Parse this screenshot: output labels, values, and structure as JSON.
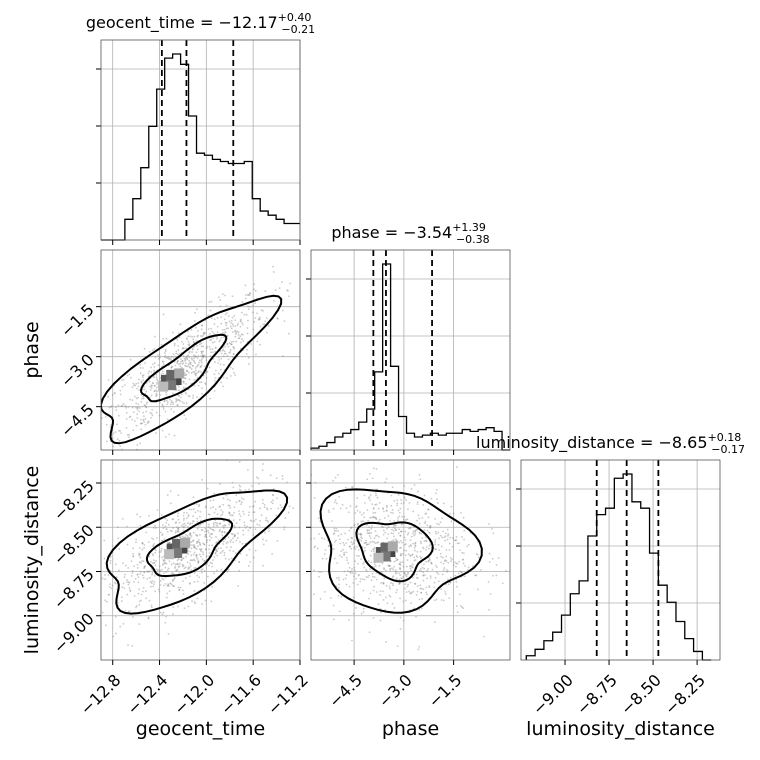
{
  "chart_data": {
    "type": "corner",
    "parameters": [
      "geocent_time",
      "phase",
      "luminosity_distance"
    ],
    "axis_ranges": {
      "geocent_time": [
        -12.9,
        -11.2
      ],
      "phase": [
        -5.8,
        0.2
      ],
      "luminosity_distance": [
        -9.25,
        -8.12
      ]
    },
    "ticks": {
      "geocent_time": [
        -12.8,
        -12.4,
        -12.0,
        -11.6,
        -11.2
      ],
      "phase": [
        -4.5,
        -3.0,
        -1.5
      ],
      "luminosity_distance": [
        -9.0,
        -8.75,
        -8.5,
        -8.25
      ]
    },
    "tick_labels": {
      "geocent_time": [
        "−12.8",
        "−12.4",
        "−12.0",
        "−11.6",
        "−11.2"
      ],
      "phase": [
        "−4.5",
        "−3.0",
        "−1.5"
      ],
      "luminosity_distance": [
        "−9.00",
        "−8.75",
        "−8.50",
        "−8.25"
      ]
    },
    "grid": true,
    "titles": {
      "geocent_time": {
        "text": "geocent_time = −12.17",
        "plus": "+0.40",
        "minus": "−0.21"
      },
      "phase": {
        "text": "phase = −3.54",
        "plus": "+1.39",
        "minus": "−0.38"
      },
      "luminosity_distance": {
        "text": "luminosity_distance = −8.65",
        "plus": "+0.18",
        "minus": "−0.17"
      }
    },
    "quantiles": {
      "geocent_time": [
        -12.38,
        -12.17,
        -11.77
      ],
      "phase": [
        -3.92,
        -3.54,
        -2.15
      ],
      "luminosity_distance": [
        -8.82,
        -8.65,
        -8.47
      ]
    },
    "histograms": {
      "geocent_time": {
        "range": [
          -12.9,
          -11.2
        ],
        "counts": [
          0,
          0,
          0,
          0.1,
          0.2,
          0.35,
          0.55,
          0.73,
          0.88,
          0.9,
          0.85,
          0.6,
          0.42,
          0.41,
          0.39,
          0.38,
          0.37,
          0.37,
          0.38,
          0.2,
          0.14,
          0.12,
          0.1,
          0.08,
          0.08
        ]
      },
      "phase": {
        "range": [
          -5.8,
          0.2
        ],
        "counts": [
          0.01,
          0.02,
          0.04,
          0.07,
          0.09,
          0.11,
          0.15,
          0.22,
          0.42,
          1.0,
          0.45,
          0.18,
          0.09,
          0.07,
          0.08,
          0.09,
          0.08,
          0.09,
          0.09,
          0.11,
          0.1,
          0.11,
          0.12,
          0.1,
          0.0
        ]
      },
      "luminosity_distance": {
        "range": [
          -9.22,
          -8.17
        ],
        "counts": [
          0.02,
          0.05,
          0.09,
          0.13,
          0.21,
          0.31,
          0.37,
          0.58,
          0.68,
          0.71,
          0.85,
          0.87,
          0.74,
          0.71,
          0.5,
          0.35,
          0.27,
          0.18,
          0.1,
          0.04,
          0.0
        ]
      }
    },
    "pairs": [
      {
        "x": "geocent_time",
        "y": "phase",
        "mean": [
          -12.2,
          -3.4
        ],
        "sd": [
          0.38,
          1.1
        ],
        "rho": 0.82,
        "peak": [
          -12.3,
          -3.7
        ]
      },
      {
        "x": "geocent_time",
        "y": "luminosity_distance",
        "mean": [
          -12.15,
          -8.62
        ],
        "sd": [
          0.38,
          0.18
        ],
        "rho": 0.65,
        "peak": [
          -12.25,
          -8.62
        ]
      },
      {
        "x": "phase",
        "y": "luminosity_distance",
        "mean": [
          -3.3,
          -8.62
        ],
        "sd": [
          1.2,
          0.18
        ],
        "rho": -0.1,
        "peak": [
          -3.55,
          -8.64
        ]
      }
    ],
    "contour_levels": [
      "39.3%",
      "86.5%"
    ]
  }
}
